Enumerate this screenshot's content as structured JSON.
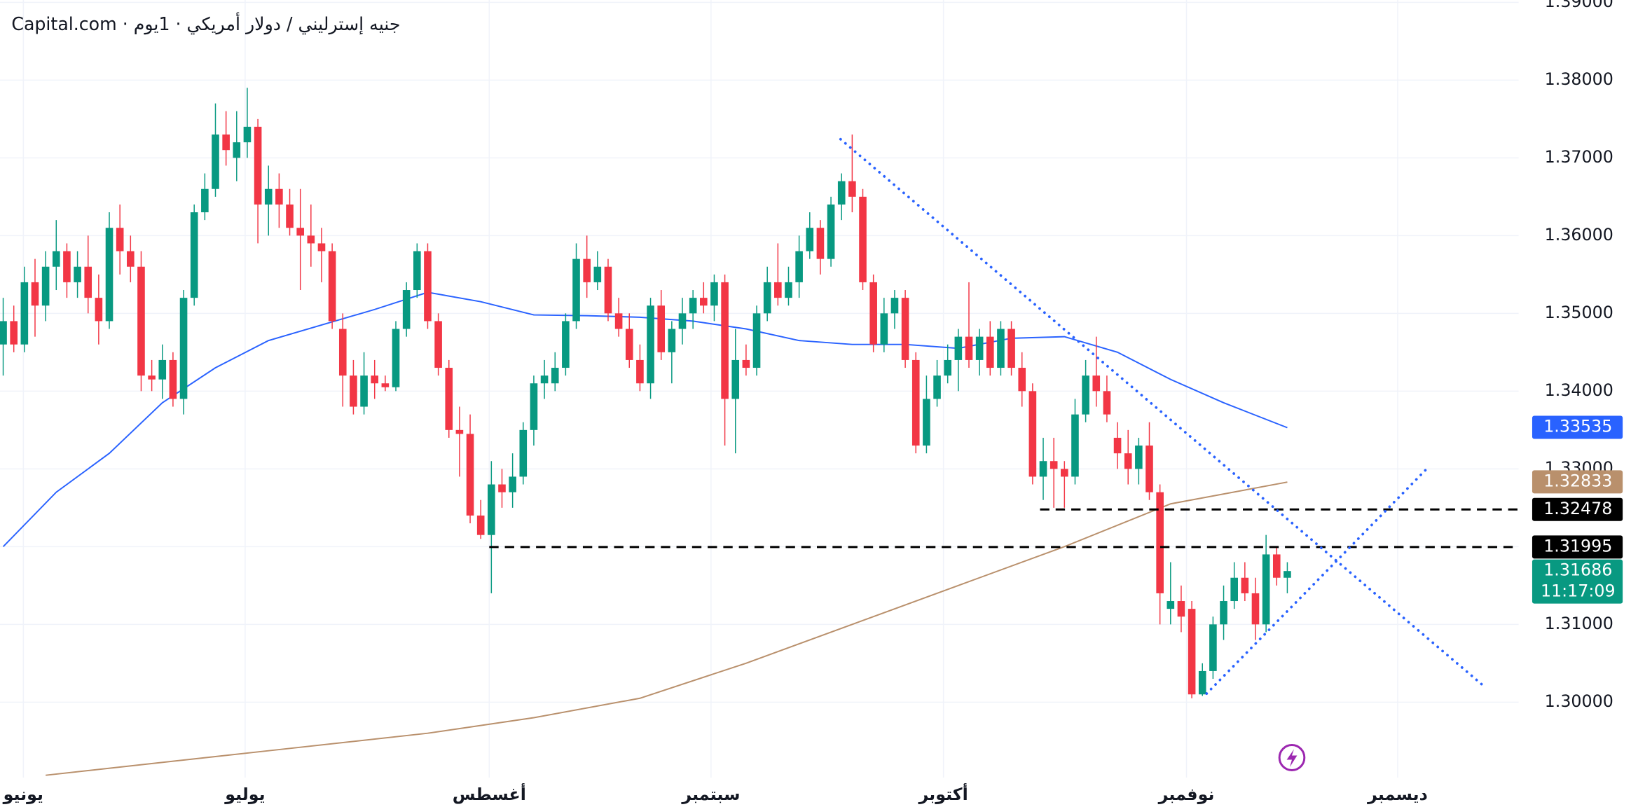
{
  "chart_data": {
    "type": "candlestick",
    "title": "Capital.com · جنيه إسترليني / دولار أمريكي · 1يوم",
    "up_color": "#089981",
    "down_color": "#f23645",
    "ylim": [
      1.2903,
      1.3903
    ],
    "yticks": [
      {
        "value": 1.3,
        "label": "1.30000"
      },
      {
        "value": 1.31,
        "label": "1.31000"
      },
      {
        "value": 1.32,
        "label": "1.32000"
      },
      {
        "value": 1.33,
        "label": "1.33000"
      },
      {
        "value": 1.34,
        "label": "1.34000"
      },
      {
        "value": 1.35,
        "label": "1.35000"
      },
      {
        "value": 1.36,
        "label": "1.36000"
      },
      {
        "value": 1.37,
        "label": "1.37000"
      },
      {
        "value": 1.38,
        "label": "1.38000"
      },
      {
        "value": 1.39,
        "label": "1.39000"
      }
    ],
    "xlim": [
      -0.3,
      142.8
    ],
    "xticks": [
      {
        "value": 1.9,
        "label": "يونيو"
      },
      {
        "value": 22.8,
        "label": "يوليو"
      },
      {
        "value": 45.8,
        "label": "أغسطس"
      },
      {
        "value": 66.7,
        "label": "سبتمبر"
      },
      {
        "value": 88.6,
        "label": "أكتوبر"
      },
      {
        "value": 111.5,
        "label": "نوفمبر"
      },
      {
        "value": 131.4,
        "label": "ديسمبر"
      }
    ],
    "grid": true,
    "ohlc": [
      [
        1.346,
        1.352,
        1.342,
        1.349
      ],
      [
        1.349,
        1.351,
        1.345,
        1.346
      ],
      [
        1.346,
        1.356,
        1.345,
        1.354
      ],
      [
        1.354,
        1.357,
        1.347,
        1.351
      ],
      [
        1.351,
        1.358,
        1.349,
        1.356
      ],
      [
        1.356,
        1.362,
        1.353,
        1.358
      ],
      [
        1.358,
        1.359,
        1.352,
        1.354
      ],
      [
        1.354,
        1.358,
        1.352,
        1.356
      ],
      [
        1.356,
        1.36,
        1.35,
        1.352
      ],
      [
        1.352,
        1.355,
        1.346,
        1.349
      ],
      [
        1.349,
        1.363,
        1.348,
        1.361
      ],
      [
        1.361,
        1.364,
        1.355,
        1.358
      ],
      [
        1.358,
        1.36,
        1.354,
        1.356
      ],
      [
        1.356,
        1.358,
        1.34,
        1.342
      ],
      [
        1.342,
        1.344,
        1.34,
        1.3415
      ],
      [
        1.3415,
        1.346,
        1.339,
        1.344
      ],
      [
        1.344,
        1.345,
        1.338,
        1.339
      ],
      [
        1.339,
        1.353,
        1.337,
        1.352
      ],
      [
        1.352,
        1.364,
        1.351,
        1.363
      ],
      [
        1.363,
        1.368,
        1.362,
        1.366
      ],
      [
        1.366,
        1.377,
        1.365,
        1.373
      ],
      [
        1.373,
        1.376,
        1.369,
        1.371
      ],
      [
        1.37,
        1.376,
        1.367,
        1.372
      ],
      [
        1.372,
        1.379,
        1.37,
        1.374
      ],
      [
        1.374,
        1.375,
        1.359,
        1.364
      ],
      [
        1.364,
        1.369,
        1.36,
        1.366
      ],
      [
        1.366,
        1.368,
        1.361,
        1.364
      ],
      [
        1.364,
        1.366,
        1.36,
        1.361
      ],
      [
        1.361,
        1.366,
        1.353,
        1.36
      ],
      [
        1.36,
        1.364,
        1.356,
        1.359
      ],
      [
        1.359,
        1.361,
        1.354,
        1.358
      ],
      [
        1.358,
        1.359,
        1.348,
        1.349
      ],
      [
        1.348,
        1.35,
        1.338,
        1.342
      ],
      [
        1.342,
        1.344,
        1.337,
        1.338
      ],
      [
        1.338,
        1.345,
        1.337,
        1.342
      ],
      [
        1.342,
        1.344,
        1.339,
        1.341
      ],
      [
        1.341,
        1.342,
        1.34,
        1.3405
      ],
      [
        1.3405,
        1.349,
        1.34,
        1.348
      ],
      [
        1.348,
        1.354,
        1.347,
        1.353
      ],
      [
        1.353,
        1.359,
        1.352,
        1.358
      ],
      [
        1.358,
        1.359,
        1.348,
        1.349
      ],
      [
        1.349,
        1.35,
        1.342,
        1.343
      ],
      [
        1.343,
        1.344,
        1.334,
        1.335
      ],
      [
        1.335,
        1.338,
        1.329,
        1.3345
      ],
      [
        1.3345,
        1.337,
        1.323,
        1.324
      ],
      [
        1.324,
        1.326,
        1.321,
        1.3215
      ],
      [
        1.3215,
        1.331,
        1.314,
        1.328
      ],
      [
        1.328,
        1.33,
        1.325,
        1.327
      ],
      [
        1.327,
        1.332,
        1.325,
        1.329
      ],
      [
        1.329,
        1.336,
        1.328,
        1.335
      ],
      [
        1.335,
        1.342,
        1.333,
        1.341
      ],
      [
        1.341,
        1.344,
        1.339,
        1.342
      ],
      [
        1.341,
        1.345,
        1.34,
        1.343
      ],
      [
        1.343,
        1.35,
        1.342,
        1.349
      ],
      [
        1.349,
        1.359,
        1.348,
        1.357
      ],
      [
        1.357,
        1.36,
        1.352,
        1.354
      ],
      [
        1.354,
        1.358,
        1.353,
        1.356
      ],
      [
        1.356,
        1.357,
        1.349,
        1.35
      ],
      [
        1.35,
        1.352,
        1.347,
        1.348
      ],
      [
        1.348,
        1.35,
        1.343,
        1.344
      ],
      [
        1.344,
        1.346,
        1.34,
        1.341
      ],
      [
        1.341,
        1.352,
        1.339,
        1.351
      ],
      [
        1.351,
        1.353,
        1.344,
        1.345
      ],
      [
        1.345,
        1.349,
        1.341,
        1.348
      ],
      [
        1.348,
        1.352,
        1.346,
        1.35
      ],
      [
        1.35,
        1.353,
        1.348,
        1.352
      ],
      [
        1.352,
        1.354,
        1.35,
        1.351
      ],
      [
        1.351,
        1.355,
        1.349,
        1.354
      ],
      [
        1.354,
        1.355,
        1.333,
        1.339
      ],
      [
        1.339,
        1.348,
        1.332,
        1.344
      ],
      [
        1.344,
        1.346,
        1.342,
        1.343
      ],
      [
        1.343,
        1.351,
        1.342,
        1.35
      ],
      [
        1.35,
        1.356,
        1.349,
        1.354
      ],
      [
        1.354,
        1.359,
        1.351,
        1.352
      ],
      [
        1.352,
        1.356,
        1.351,
        1.354
      ],
      [
        1.354,
        1.36,
        1.352,
        1.358
      ],
      [
        1.358,
        1.363,
        1.357,
        1.361
      ],
      [
        1.361,
        1.362,
        1.355,
        1.357
      ],
      [
        1.357,
        1.365,
        1.356,
        1.364
      ],
      [
        1.364,
        1.368,
        1.362,
        1.367
      ],
      [
        1.367,
        1.373,
        1.363,
        1.365
      ],
      [
        1.365,
        1.366,
        1.353,
        1.354
      ],
      [
        1.354,
        1.355,
        1.345,
        1.346
      ],
      [
        1.346,
        1.352,
        1.345,
        1.35
      ],
      [
        1.35,
        1.353,
        1.348,
        1.352
      ],
      [
        1.352,
        1.353,
        1.343,
        1.344
      ],
      [
        1.344,
        1.345,
        1.332,
        1.333
      ],
      [
        1.333,
        1.342,
        1.332,
        1.339
      ],
      [
        1.339,
        1.344,
        1.338,
        1.342
      ],
      [
        1.342,
        1.346,
        1.341,
        1.344
      ],
      [
        1.344,
        1.348,
        1.34,
        1.347
      ],
      [
        1.347,
        1.354,
        1.343,
        1.344
      ],
      [
        1.344,
        1.348,
        1.342,
        1.347
      ],
      [
        1.347,
        1.349,
        1.342,
        1.343
      ],
      [
        1.343,
        1.349,
        1.342,
        1.348
      ],
      [
        1.348,
        1.349,
        1.342,
        1.343
      ],
      [
        1.343,
        1.345,
        1.338,
        1.34
      ],
      [
        1.34,
        1.341,
        1.328,
        1.329
      ],
      [
        1.329,
        1.334,
        1.326,
        1.331
      ],
      [
        1.331,
        1.334,
        1.325,
        1.33
      ],
      [
        1.33,
        1.331,
        1.325,
        1.329
      ],
      [
        1.329,
        1.339,
        1.328,
        1.337
      ],
      [
        1.337,
        1.344,
        1.336,
        1.342
      ],
      [
        1.342,
        1.347,
        1.338,
        1.34
      ],
      [
        1.34,
        1.342,
        1.336,
        1.337
      ],
      [
        1.334,
        1.336,
        1.33,
        1.332
      ],
      [
        1.332,
        1.335,
        1.328,
        1.33
      ],
      [
        1.33,
        1.334,
        1.328,
        1.333
      ],
      [
        1.333,
        1.336,
        1.326,
        1.327
      ],
      [
        1.327,
        1.328,
        1.31,
        1.314
      ],
      [
        1.312,
        1.318,
        1.31,
        1.313
      ],
      [
        1.313,
        1.315,
        1.309,
        1.311
      ],
      [
        1.312,
        1.313,
        1.3005,
        1.301
      ],
      [
        1.301,
        1.305,
        1.3008,
        1.304
      ],
      [
        1.304,
        1.311,
        1.303,
        1.31
      ],
      [
        1.31,
        1.315,
        1.308,
        1.313
      ],
      [
        1.313,
        1.318,
        1.312,
        1.316
      ],
      [
        1.316,
        1.318,
        1.313,
        1.314
      ],
      [
        1.314,
        1.316,
        1.308,
        1.31
      ],
      [
        1.31,
        1.3215,
        1.309,
        1.319
      ],
      [
        1.319,
        1.32,
        1.315,
        1.316
      ],
      [
        1.316,
        1.318,
        1.314,
        1.31686
      ]
    ],
    "moving_averages": [
      {
        "color": "#2962ff",
        "x": [
          0,
          5,
          10,
          15,
          20,
          25,
          30,
          35,
          40,
          45,
          50,
          55,
          60,
          65,
          70,
          75,
          80,
          85,
          90,
          95,
          100,
          105,
          110,
          115,
          121
        ],
        "values": [
          1.32,
          1.327,
          1.332,
          1.3385,
          1.343,
          1.3465,
          1.3485,
          1.3505,
          1.3527,
          1.3515,
          1.3498,
          1.3497,
          1.3495,
          1.349,
          1.348,
          1.3465,
          1.346,
          1.346,
          1.3455,
          1.3468,
          1.347,
          1.345,
          1.3415,
          1.3385,
          1.3353
        ]
      },
      {
        "color": "#b9906c",
        "x": [
          4,
          20,
          40,
          50,
          60,
          70,
          80,
          90,
          100,
          110,
          121
        ],
        "values": [
          1.2906,
          1.293,
          1.296,
          1.298,
          1.3005,
          1.305,
          1.31,
          1.315,
          1.32,
          1.3255,
          1.3283
        ]
      }
    ],
    "hlines": [
      {
        "value": 1.32478,
        "x_start": 97.7
      },
      {
        "value": 1.31995,
        "x_start": 45.8
      }
    ],
    "trend_lines": [
      {
        "x": [
          78.9,
          139.4
        ],
        "values": [
          1.3724,
          1.3022
        ]
      },
      {
        "x": [
          113.4,
          134.2
        ],
        "values": [
          1.3011,
          1.3301
        ]
      }
    ],
    "price_labels": [
      {
        "value": 1.33535,
        "label": "1.33535",
        "color": "#2962ff"
      },
      {
        "value": 1.32833,
        "label": "1.32833",
        "color": "#b9906c"
      },
      {
        "value": 1.32478,
        "label": "1.32478",
        "color": "#000000"
      },
      {
        "value": 1.31995,
        "label": "1.31995",
        "color": "#000000"
      },
      {
        "value": 1.31686,
        "label": "1.31686",
        "color": "#089981",
        "countdown": "11:17:09"
      }
    ]
  }
}
